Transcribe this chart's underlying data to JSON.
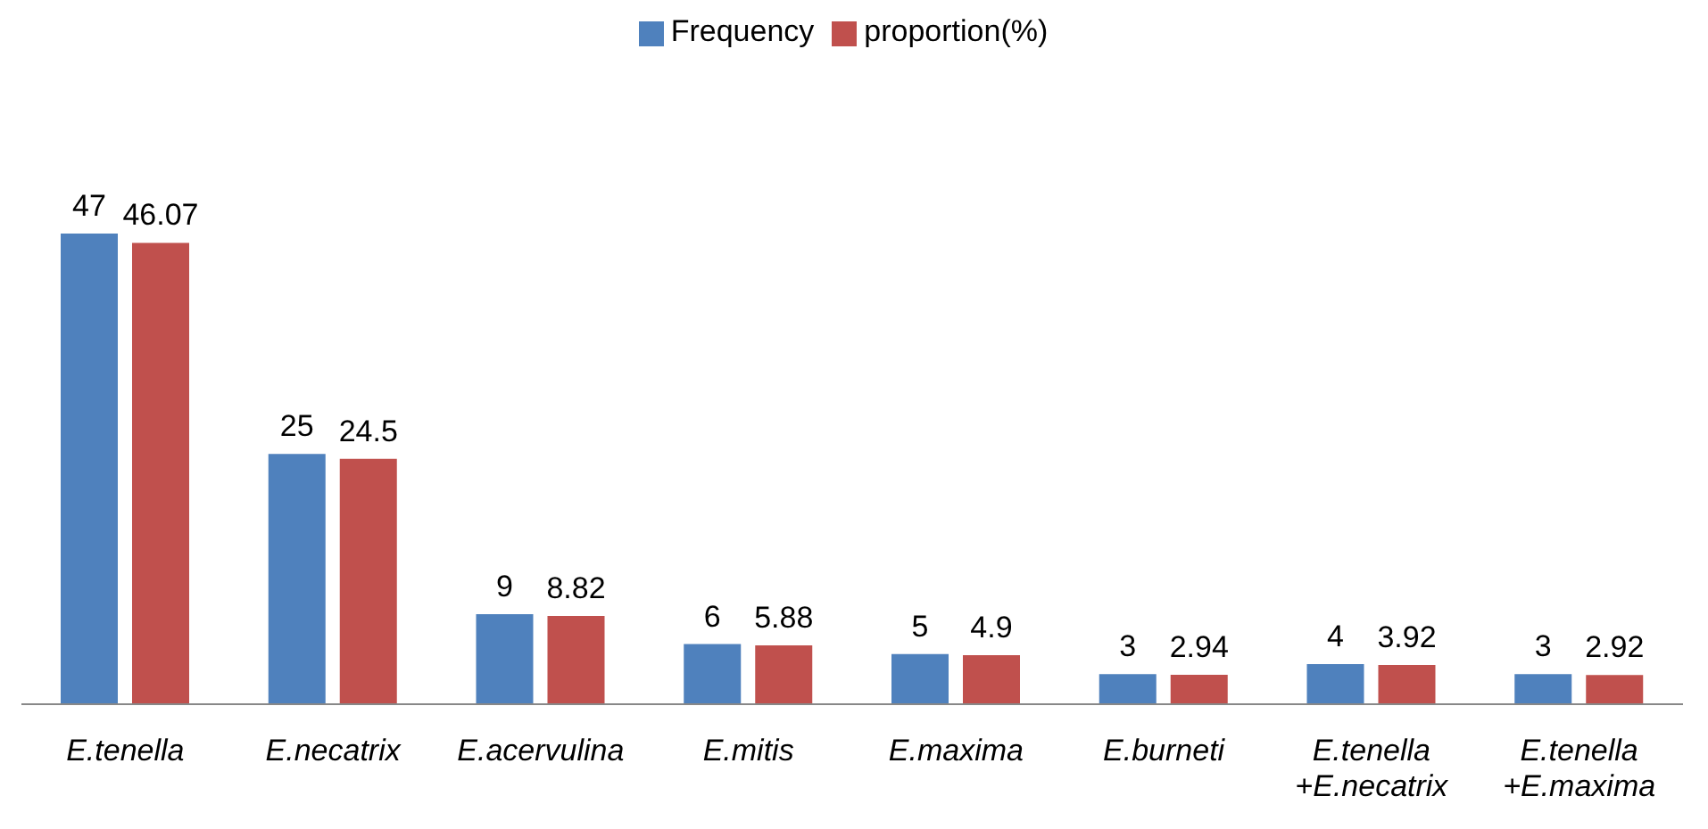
{
  "chart_data": {
    "type": "bar",
    "categories": [
      "E.tenella",
      "E.necatrix",
      "E.acervulina",
      "E.mitis",
      "E.maxima",
      "E.burneti",
      "E.tenella +E.necatrix",
      "E.tenella +E.maxima"
    ],
    "series": [
      {
        "name": "Frequency",
        "color": "#4f81bd",
        "values": [
          47,
          25,
          9,
          6,
          5,
          3,
          4,
          3
        ]
      },
      {
        "name": "proportion(%)",
        "color": "#c0504d",
        "values": [
          46.07,
          24.5,
          8.82,
          5.88,
          4.9,
          2.94,
          3.92,
          2.92
        ]
      }
    ],
    "data_labels": true,
    "legend": "top",
    "grid": false
  }
}
